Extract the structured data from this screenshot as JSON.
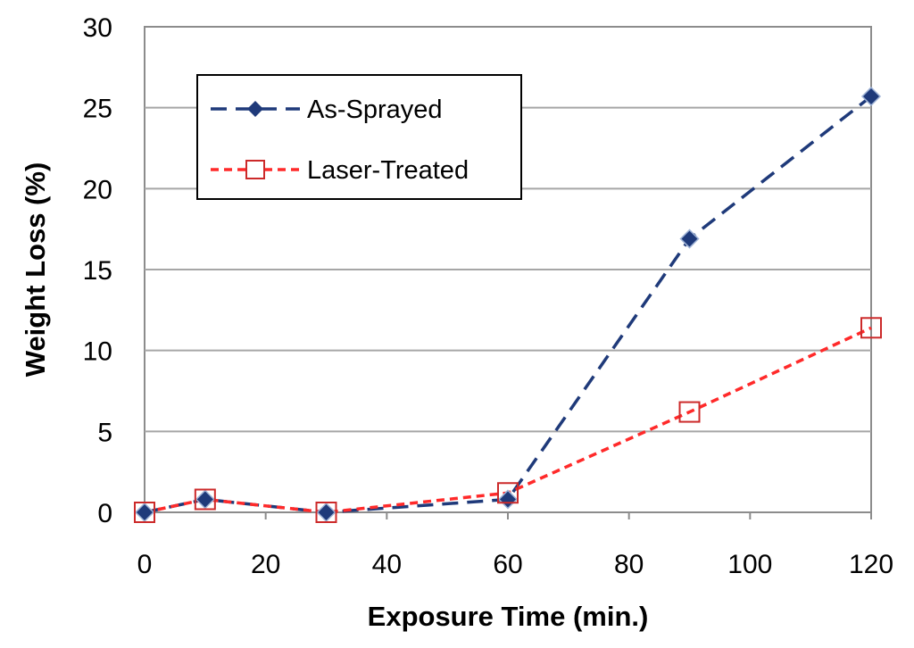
{
  "chart_data": {
    "type": "line",
    "title": "",
    "xlabel": "Exposure Time (min.)",
    "ylabel": "Weight Loss (%)",
    "xlim": [
      0,
      120
    ],
    "ylim": [
      0,
      30
    ],
    "xticks": [
      0,
      20,
      40,
      60,
      80,
      100,
      120
    ],
    "yticks": [
      0,
      5,
      10,
      15,
      20,
      25,
      30
    ],
    "grid": "horizontal",
    "legend_position": "top-left",
    "x": [
      0,
      10,
      30,
      60,
      90,
      120
    ],
    "series": [
      {
        "name": "As-Sprayed",
        "values": [
          0.0,
          0.8,
          0.0,
          0.8,
          16.9,
          25.7
        ],
        "color": "#1f3a7a",
        "marker": "diamond",
        "line_style": "long-dash"
      },
      {
        "name": "Laser-Treated",
        "values": [
          0.0,
          0.8,
          0.0,
          1.2,
          6.2,
          11.4
        ],
        "color": "#ff2a2a",
        "marker": "open-square",
        "line_style": "short-dash"
      }
    ]
  }
}
